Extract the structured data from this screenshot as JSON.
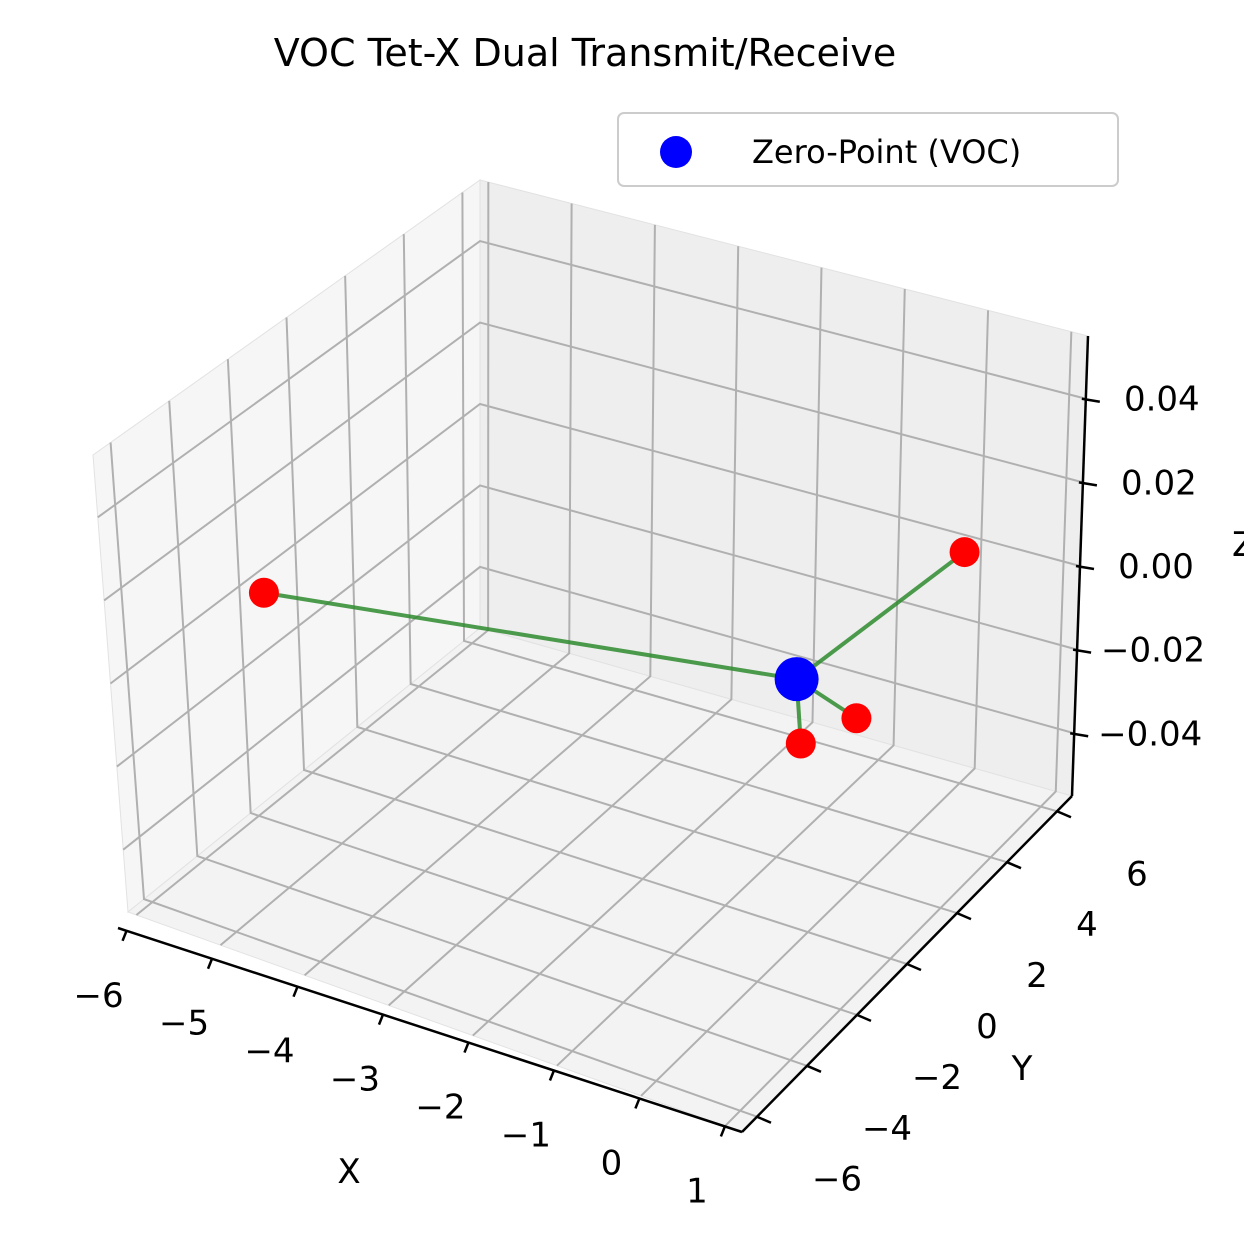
{
  "chart_data": {
    "type": "scatter3d",
    "title": "VOC Tet-X Dual Transmit/Receive",
    "xlabel": "X",
    "ylabel": "Y",
    "zlabel": "Z",
    "x_ticks": [
      "−6",
      "−5",
      "−4",
      "−3",
      "−2",
      "−1",
      "0",
      "1"
    ],
    "y_ticks": [
      "−6",
      "−4",
      "−2",
      "0",
      "2",
      "4",
      "6"
    ],
    "z_ticks": [
      "−0.04",
      "−0.02",
      "0.00",
      "0.02",
      "0.04"
    ],
    "grid": true,
    "legend": {
      "placement": "upper-right",
      "entries": [
        {
          "label": "Zero-Point (VOC)",
          "color": "#0000ff"
        }
      ]
    },
    "zero_point": {
      "x": 0,
      "y": 0,
      "z": 0
    },
    "vertices": [
      {
        "x": -5.8,
        "y": -2.0,
        "z": 0
      },
      {
        "x": 0,
        "y": 6.0,
        "z": 0
      },
      {
        "x": 1.0,
        "y": -0.8,
        "z": 0
      },
      {
        "x": 0.8,
        "y": -2.2,
        "z": 0
      }
    ],
    "colors": {
      "zero_point": "#0000ff",
      "vertex": "#ff0000",
      "line": "#2e8b2e"
    }
  }
}
